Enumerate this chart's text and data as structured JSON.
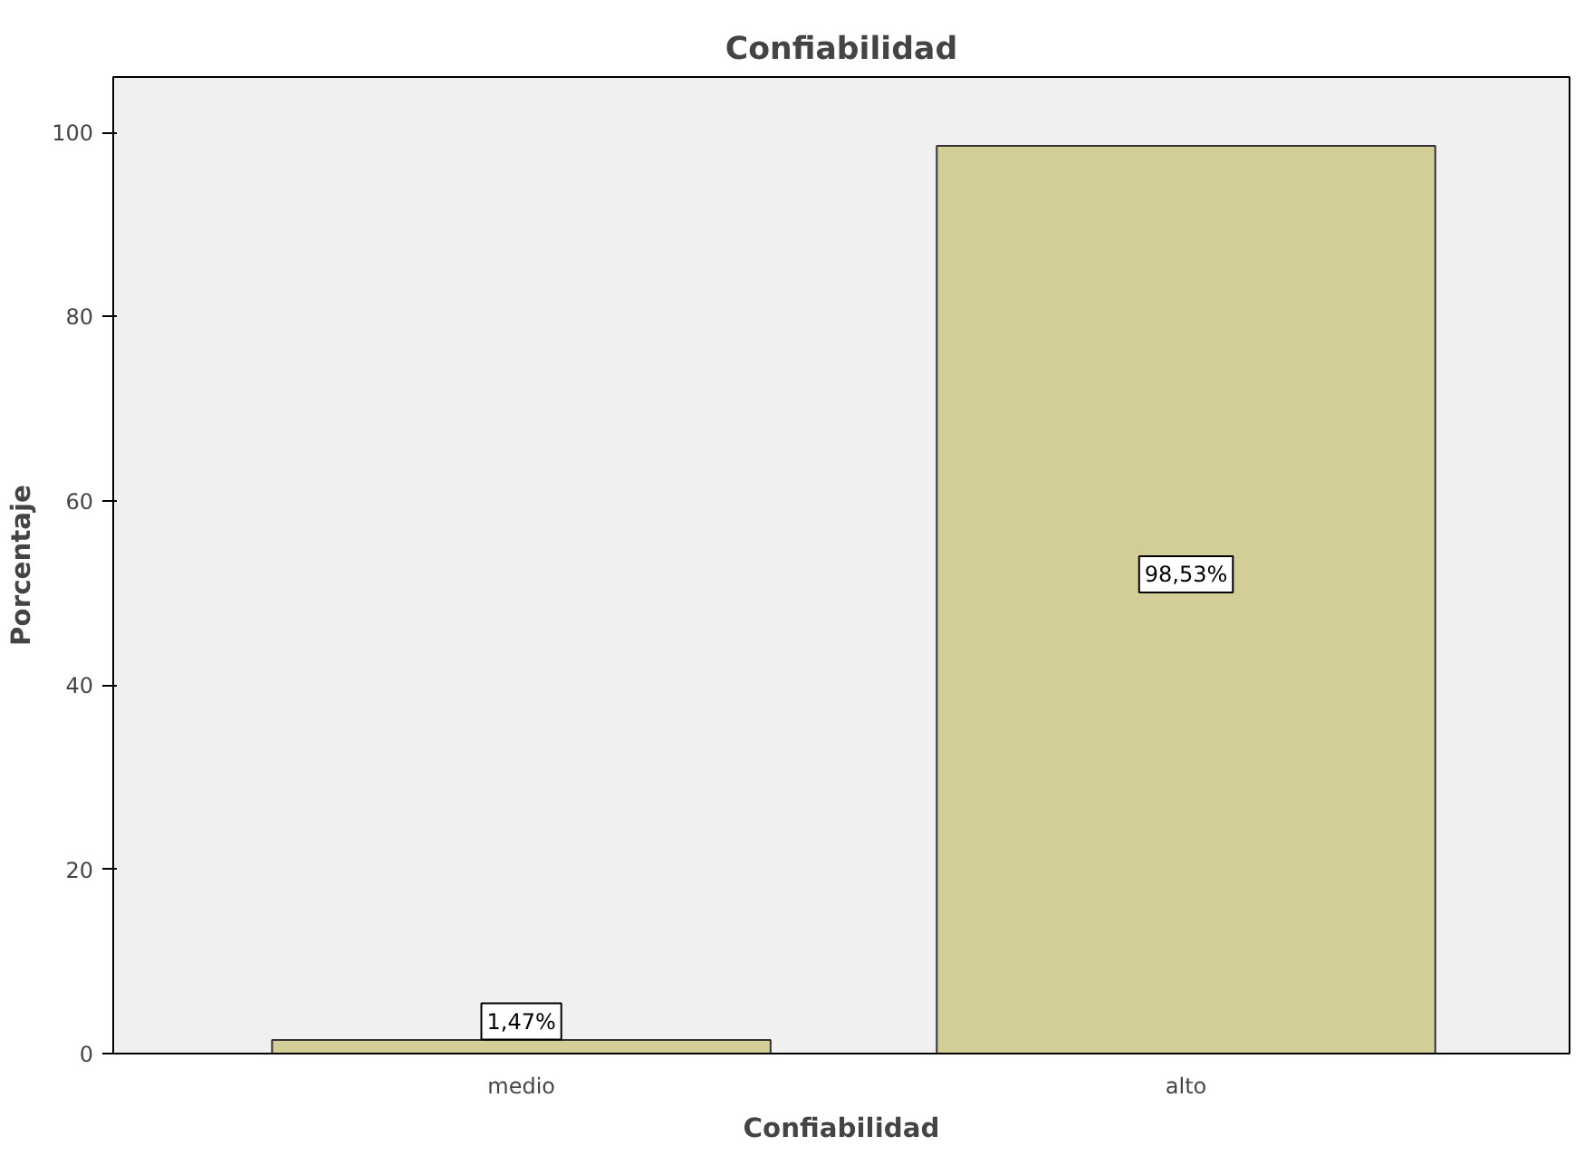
{
  "chart_data": {
    "type": "bar",
    "title": "Confiabilidad",
    "xlabel": "Confiabilidad",
    "ylabel": "Porcentaje",
    "categories": [
      "medio",
      "alto"
    ],
    "values": [
      1.47,
      98.53
    ],
    "value_labels": [
      "1,47%",
      "98,53%"
    ],
    "color": "#d3ce97",
    "ylim": [
      0,
      106
    ],
    "yticks": [
      0,
      20,
      40,
      60,
      80,
      100
    ],
    "grid": false
  }
}
